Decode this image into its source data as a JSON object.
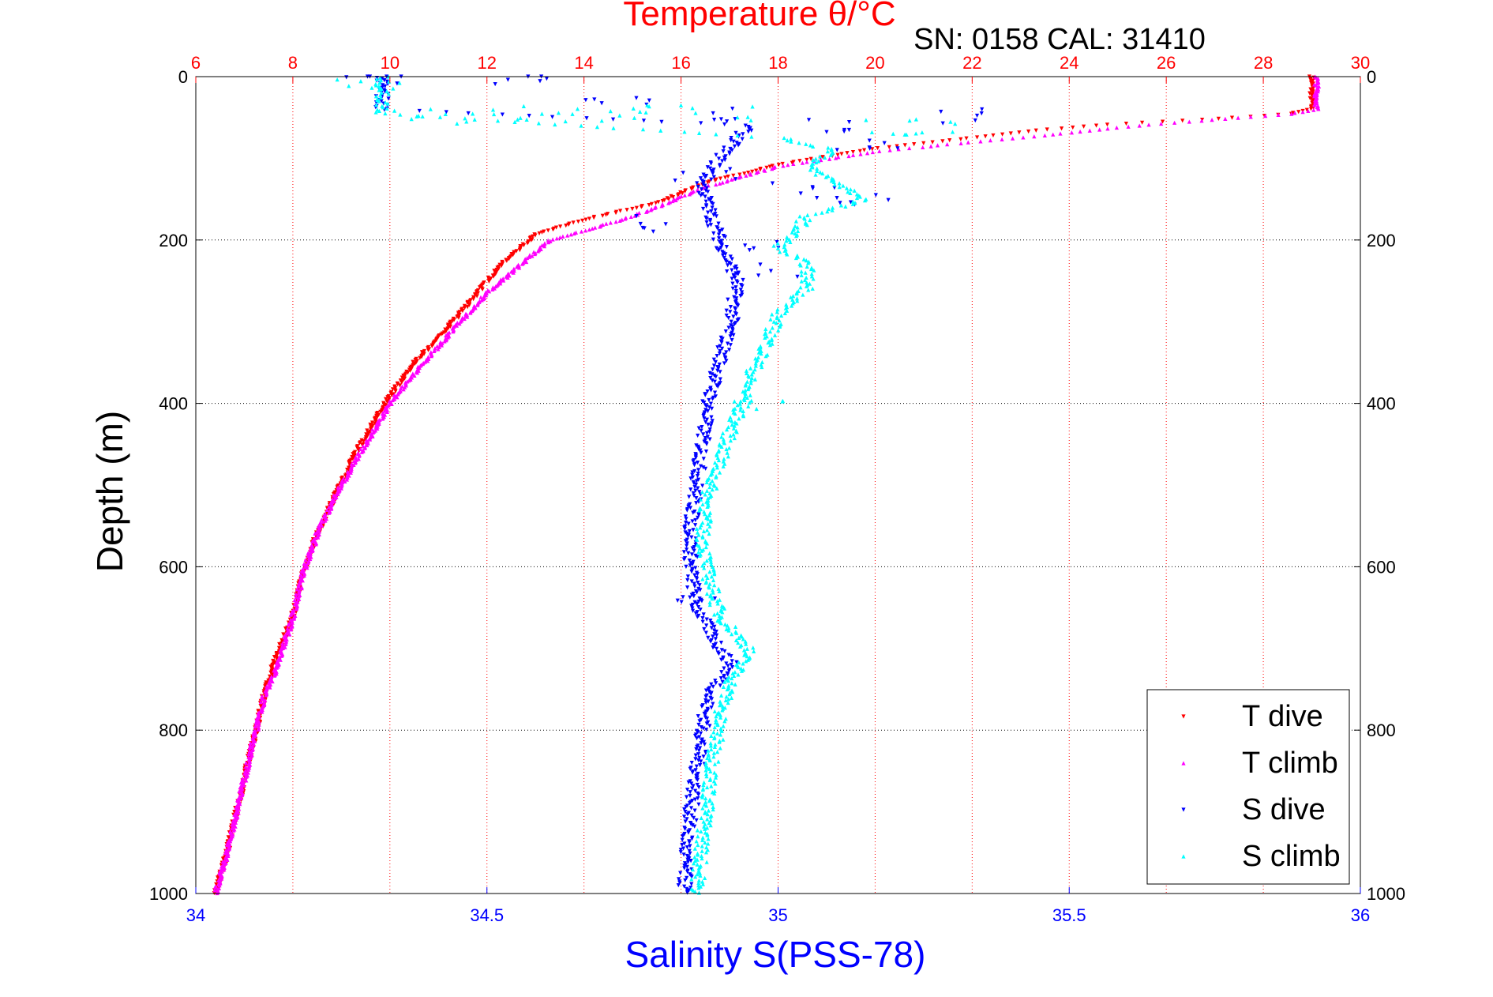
{
  "chart_data": {
    "type": "scatter",
    "title": "Temperature θ/°C",
    "subtitle": "SN: 0158  CAL: 31410",
    "ylabel": "Depth (m)",
    "xlabel": "Salinity S(PSS-78)",
    "ylim": [
      0,
      1000
    ],
    "y_reversed": true,
    "y_ticks": [
      0,
      200,
      400,
      600,
      800,
      1000
    ],
    "x_temp": {
      "label": "Temperature θ/°C",
      "range": [
        6,
        30
      ],
      "ticks": [
        6,
        8,
        10,
        12,
        14,
        16,
        18,
        20,
        22,
        24,
        26,
        28,
        30
      ],
      "color": "#ff0000"
    },
    "x_salinity": {
      "label": "Salinity S(PSS-78)",
      "range": [
        34,
        36
      ],
      "ticks": [
        34,
        34.5,
        35,
        35.5,
        36
      ],
      "color": "#0000ff"
    },
    "grid": true,
    "legend_position": "bottom-right",
    "colors": {
      "T_dive": "#ff0000",
      "T_climb": "#ff00ff",
      "S_dive": "#0000ff",
      "S_climb": "#00ffff"
    },
    "series": [
      {
        "name": "T dive",
        "axis": "temperature",
        "marker": "triangle-down",
        "profile": [
          [
            29.0,
            0
          ],
          [
            29.0,
            40
          ],
          [
            28.5,
            46
          ],
          [
            27.0,
            52
          ],
          [
            25.0,
            58
          ],
          [
            23.5,
            65
          ],
          [
            22.0,
            75
          ],
          [
            20.0,
            88
          ],
          [
            18.0,
            108
          ],
          [
            16.5,
            130
          ],
          [
            15.5,
            155
          ],
          [
            14.0,
            175
          ],
          [
            13.0,
            193
          ],
          [
            12.3,
            230
          ],
          [
            11.8,
            265
          ],
          [
            11.3,
            300
          ],
          [
            10.5,
            350
          ],
          [
            9.9,
            400
          ],
          [
            9.3,
            460
          ],
          [
            8.9,
            510
          ],
          [
            8.5,
            560
          ],
          [
            8.2,
            610
          ],
          [
            8.0,
            660
          ],
          [
            7.6,
            720
          ],
          [
            7.4,
            760
          ],
          [
            7.2,
            810
          ],
          [
            7.0,
            860
          ],
          [
            6.8,
            910
          ],
          [
            6.6,
            960
          ],
          [
            6.4,
            1000
          ]
        ]
      },
      {
        "name": "T climb",
        "axis": "temperature",
        "marker": "triangle-up",
        "profile": [
          [
            29.1,
            0
          ],
          [
            29.1,
            40
          ],
          [
            28.5,
            46
          ],
          [
            26.5,
            55
          ],
          [
            25.0,
            62
          ],
          [
            23.5,
            72
          ],
          [
            22.0,
            80
          ],
          [
            20.0,
            92
          ],
          [
            18.0,
            110
          ],
          [
            16.5,
            135
          ],
          [
            15.5,
            160
          ],
          [
            14.8,
            175
          ],
          [
            13.3,
            200
          ],
          [
            12.6,
            235
          ],
          [
            12.0,
            265
          ],
          [
            11.3,
            310
          ],
          [
            10.7,
            350
          ],
          [
            10.0,
            400
          ],
          [
            9.4,
            460
          ],
          [
            8.9,
            510
          ],
          [
            8.5,
            560
          ],
          [
            8.2,
            610
          ],
          [
            8.0,
            660
          ],
          [
            7.7,
            720
          ],
          [
            7.4,
            760
          ],
          [
            7.2,
            810
          ],
          [
            7.0,
            860
          ],
          [
            6.8,
            910
          ],
          [
            6.6,
            960
          ],
          [
            6.4,
            1000
          ]
        ]
      },
      {
        "name": "S dive",
        "axis": "salinity",
        "marker": "triangle-down",
        "profile": [
          [
            34.32,
            0
          ],
          [
            34.32,
            40
          ],
          [
            34.95,
            60
          ],
          [
            34.9,
            100
          ],
          [
            34.87,
            130
          ],
          [
            34.88,
            160
          ],
          [
            34.9,
            200
          ],
          [
            34.93,
            250
          ],
          [
            34.92,
            300
          ],
          [
            34.9,
            350
          ],
          [
            34.88,
            400
          ],
          [
            34.87,
            450
          ],
          [
            34.86,
            500
          ],
          [
            34.85,
            550
          ],
          [
            34.85,
            600
          ],
          [
            34.86,
            650
          ],
          [
            34.9,
            700
          ],
          [
            34.92,
            720
          ],
          [
            34.88,
            760
          ],
          [
            34.87,
            800
          ],
          [
            34.86,
            850
          ],
          [
            34.85,
            900
          ],
          [
            34.84,
            950
          ],
          [
            34.84,
            1000
          ]
        ],
        "scatter": [
          [
            34.3,
            0
          ],
          [
            34.55,
            0
          ],
          [
            34.72,
            30
          ],
          [
            34.9,
            45
          ],
          [
            35.1,
            60
          ],
          [
            35.3,
            50
          ],
          [
            35.15,
            80
          ],
          [
            34.88,
            120
          ],
          [
            35.05,
            140
          ],
          [
            35.15,
            155
          ],
          [
            34.8,
            180
          ],
          [
            34.95,
            210
          ],
          [
            34.98,
            240
          ],
          [
            34.85,
            640
          ]
        ]
      },
      {
        "name": "S climb",
        "axis": "salinity",
        "marker": "triangle-up",
        "profile": [
          [
            34.32,
            0
          ],
          [
            34.32,
            45
          ],
          [
            35.0,
            75
          ],
          [
            35.1,
            90
          ],
          [
            35.05,
            110
          ],
          [
            35.1,
            130
          ],
          [
            35.15,
            150
          ],
          [
            35.05,
            170
          ],
          [
            35.03,
            190
          ],
          [
            35.0,
            210
          ],
          [
            35.05,
            230
          ],
          [
            35.05,
            260
          ],
          [
            35.0,
            290
          ],
          [
            34.98,
            330
          ],
          [
            34.95,
            370
          ],
          [
            34.94,
            400
          ],
          [
            34.92,
            430
          ],
          [
            34.9,
            470
          ],
          [
            34.88,
            510
          ],
          [
            34.87,
            560
          ],
          [
            34.88,
            610
          ],
          [
            34.9,
            660
          ],
          [
            34.95,
            700
          ],
          [
            34.92,
            740
          ],
          [
            34.9,
            780
          ],
          [
            34.89,
            830
          ],
          [
            34.88,
            880
          ],
          [
            34.87,
            940
          ],
          [
            34.86,
            1000
          ]
        ],
        "scatter": [
          [
            34.3,
            10
          ],
          [
            34.4,
            45
          ],
          [
            34.5,
            48
          ],
          [
            34.6,
            46
          ],
          [
            34.7,
            48
          ],
          [
            34.8,
            45
          ],
          [
            34.9,
            46
          ],
          [
            35.2,
            60
          ],
          [
            35.25,
            65
          ],
          [
            34.95,
            400
          ]
        ]
      }
    ]
  }
}
